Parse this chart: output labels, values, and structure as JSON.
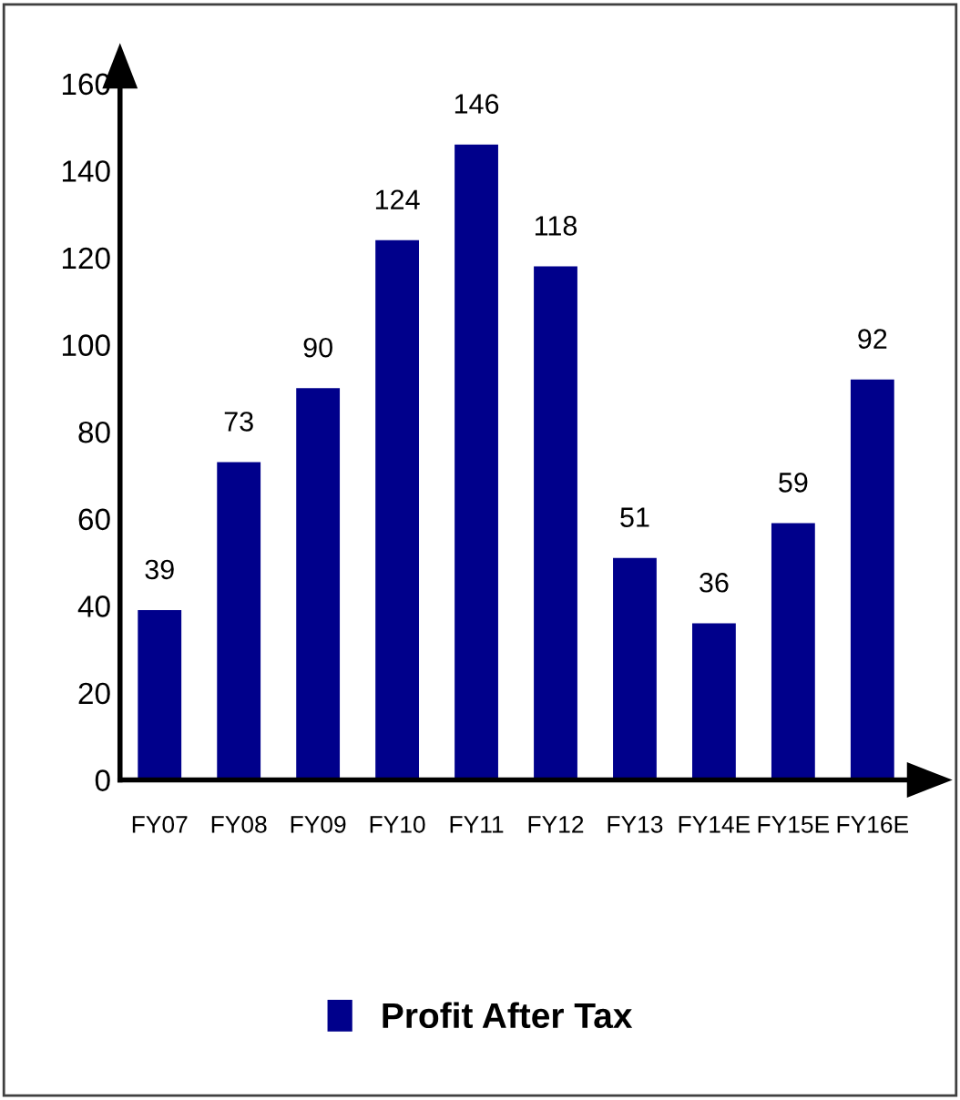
{
  "chart_data": {
    "type": "bar",
    "categories": [
      "FY07",
      "FY08",
      "FY09",
      "FY10",
      "FY11",
      "FY12",
      "FY13",
      "FY14E",
      "FY15E",
      "FY16E"
    ],
    "series": [
      {
        "name": "Profit After Tax",
        "color": "#00008b",
        "values": [
          39,
          73,
          90,
          124,
          146,
          118,
          51,
          36,
          59,
          92
        ]
      }
    ],
    "ylim": [
      0,
      160
    ],
    "yticks": [
      0,
      20,
      40,
      60,
      80,
      100,
      120,
      140,
      160
    ],
    "grid": false,
    "legend": "bottom",
    "data_labels": true
  }
}
